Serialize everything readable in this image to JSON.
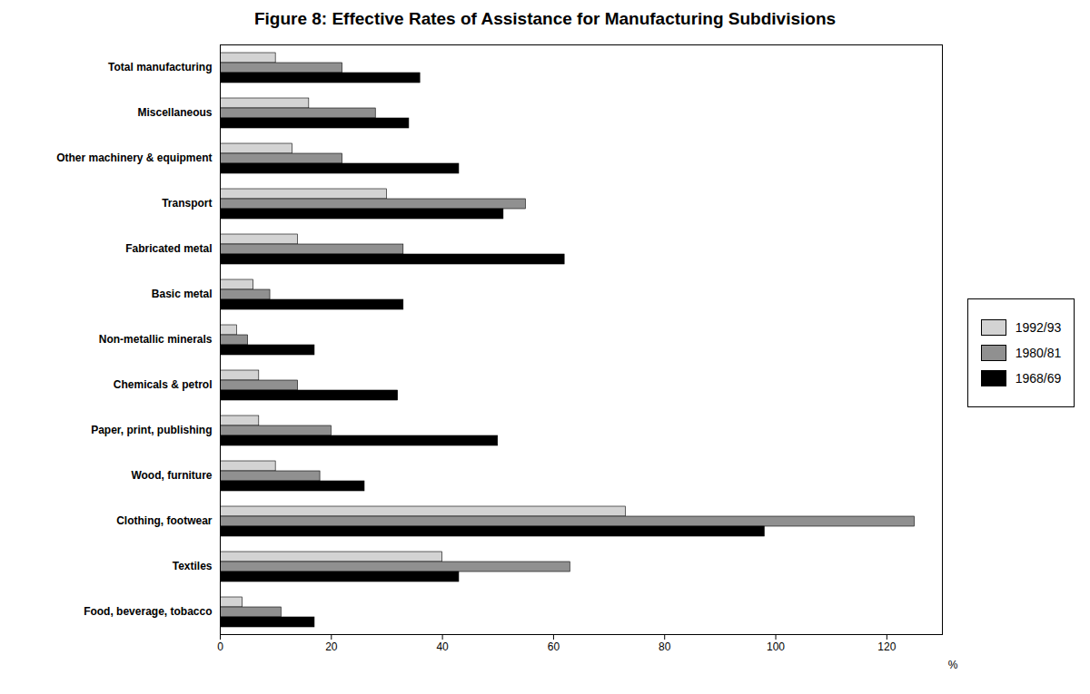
{
  "chart_data": {
    "type": "bar",
    "orientation": "horizontal",
    "title": "Figure 8: Effective Rates of Assistance for Manufacturing Subdivisions",
    "categories": [
      "Total manufacturing",
      "Miscellaneous",
      "Other machinery & equipment",
      "Transport",
      "Fabricated metal",
      "Basic metal",
      "Non-metallic minerals",
      "Chemicals & petrol",
      "Paper, print, publishing",
      "Wood, furniture",
      "Clothing, footwear",
      "Textiles",
      "Food, beverage, tobacco"
    ],
    "series": [
      {
        "name": "1992/93",
        "color": "#d3d3d3",
        "values": [
          10,
          16,
          13,
          30,
          14,
          6,
          3,
          7,
          7,
          10,
          73,
          40,
          4
        ]
      },
      {
        "name": "1980/81",
        "color": "#909090",
        "values": [
          22,
          28,
          22,
          55,
          33,
          9,
          5,
          14,
          20,
          18,
          125,
          63,
          11
        ]
      },
      {
        "name": "1968/69",
        "color": "#000000",
        "values": [
          36,
          34,
          43,
          51,
          62,
          33,
          17,
          32,
          50,
          26,
          98,
          43,
          17
        ]
      }
    ],
    "xlim": [
      0,
      130
    ],
    "xticks": [
      0,
      20,
      40,
      60,
      80,
      100,
      120
    ],
    "xlabel": "%",
    "legend": "right",
    "grid": false
  }
}
